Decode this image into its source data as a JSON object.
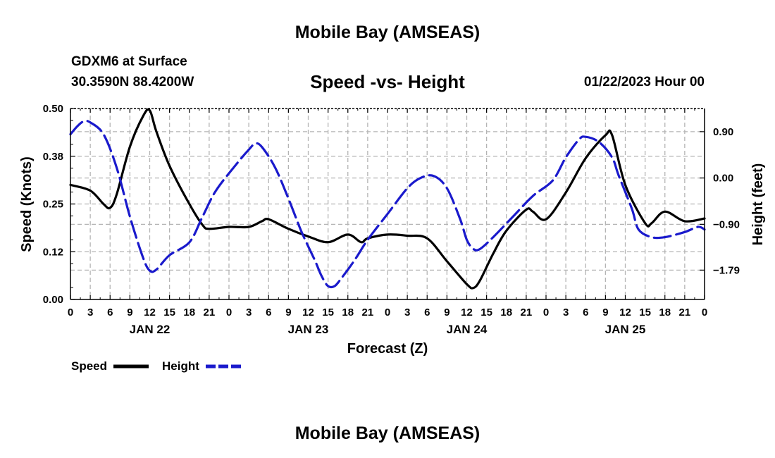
{
  "header": {
    "title": "Mobile Bay (AMSEAS)",
    "station": "GDXM6 at Surface",
    "coords": "30.3590N  88.4200W",
    "chart_title": "Speed -vs- Height",
    "datetime": "01/22/2023 Hour 00"
  },
  "footer": {
    "title": "Mobile Bay (AMSEAS)"
  },
  "colors": {
    "speed": "#000000",
    "height": "#1a1acc",
    "grid": "#b4b4b4"
  },
  "chart_data": {
    "type": "line",
    "title": "Speed -vs- Height",
    "xlabel": "Forecast (Z)",
    "x_hours": [
      0,
      3,
      6,
      9,
      12,
      15,
      18,
      21,
      0,
      3,
      6,
      9,
      12,
      15,
      18,
      21,
      0,
      3,
      6,
      9,
      12,
      15,
      18,
      21,
      0,
      3,
      6,
      9,
      12,
      15,
      18,
      21,
      0
    ],
    "x_tick_labels": [
      "0",
      "3",
      "6",
      "9",
      "12",
      "15",
      "18",
      "21",
      "0",
      "3",
      "6",
      "9",
      "12",
      "15",
      "18",
      "21",
      "0",
      "3",
      "6",
      "9",
      "12",
      "15",
      "18",
      "21",
      "0",
      "3",
      "6",
      "9",
      "12",
      "15",
      "18",
      "21",
      "0"
    ],
    "date_labels": [
      "JAN 22",
      "JAN 23",
      "JAN 24",
      "JAN 25"
    ],
    "x_range_hours": [
      0,
      96
    ],
    "y_left": {
      "label": "Speed (Knots)",
      "range": [
        0,
        0.5
      ],
      "ticks": [
        "0.00",
        "0.12",
        "0.25",
        "0.38",
        "0.50"
      ]
    },
    "y_right": {
      "label": "Height (feet)",
      "range": [
        -2.36,
        1.35
      ],
      "ticks": [
        {
          "value": 0.9,
          "label": "0.90"
        },
        {
          "value": 0.0,
          "label": "0.00"
        },
        {
          "value": -0.9,
          "label": "−0.90"
        },
        {
          "value": -1.79,
          "label": "−1.79"
        }
      ]
    },
    "grid": true,
    "legend": {
      "position": "bottom-left",
      "items": [
        "Speed",
        "Height"
      ]
    },
    "series": [
      {
        "name": "Speed",
        "axis": "left",
        "style": "solid",
        "points": [
          [
            0,
            0.3
          ],
          [
            3,
            0.285
          ],
          [
            5,
            0.25
          ],
          [
            6,
            0.24
          ],
          [
            7,
            0.275
          ],
          [
            9,
            0.4
          ],
          [
            11,
            0.48
          ],
          [
            12,
            0.495
          ],
          [
            13,
            0.44
          ],
          [
            15,
            0.35
          ],
          [
            18,
            0.25
          ],
          [
            20,
            0.195
          ],
          [
            21,
            0.185
          ],
          [
            24,
            0.19
          ],
          [
            27,
            0.19
          ],
          [
            29,
            0.205
          ],
          [
            30,
            0.21
          ],
          [
            33,
            0.185
          ],
          [
            36,
            0.165
          ],
          [
            39,
            0.15
          ],
          [
            42,
            0.17
          ],
          [
            44,
            0.15
          ],
          [
            45,
            0.16
          ],
          [
            48,
            0.17
          ],
          [
            51,
            0.167
          ],
          [
            54,
            0.16
          ],
          [
            57,
            0.1
          ],
          [
            60,
            0.04
          ],
          [
            61,
            0.03
          ],
          [
            62,
            0.05
          ],
          [
            64,
            0.12
          ],
          [
            66,
            0.18
          ],
          [
            69,
            0.235
          ],
          [
            70,
            0.23
          ],
          [
            72,
            0.21
          ],
          [
            75,
            0.28
          ],
          [
            78,
            0.37
          ],
          [
            81,
            0.43
          ],
          [
            82,
            0.43
          ],
          [
            84,
            0.3
          ],
          [
            87,
            0.2
          ],
          [
            88,
            0.2
          ],
          [
            90,
            0.23
          ],
          [
            93,
            0.205
          ],
          [
            96,
            0.212
          ]
        ]
      },
      {
        "name": "Height",
        "axis": "right",
        "style": "dashed",
        "points": [
          [
            0,
            0.85
          ],
          [
            1,
            1.0
          ],
          [
            2,
            1.1
          ],
          [
            3,
            1.08
          ],
          [
            5,
            0.85
          ],
          [
            7,
            0.2
          ],
          [
            9,
            -0.75
          ],
          [
            11,
            -1.55
          ],
          [
            12,
            -1.8
          ],
          [
            13,
            -1.78
          ],
          [
            15,
            -1.5
          ],
          [
            18,
            -1.25
          ],
          [
            20,
            -0.75
          ],
          [
            22,
            -0.25
          ],
          [
            25,
            0.25
          ],
          [
            27,
            0.55
          ],
          [
            28,
            0.67
          ],
          [
            29,
            0.6
          ],
          [
            31,
            0.2
          ],
          [
            33,
            -0.4
          ],
          [
            35,
            -1.05
          ],
          [
            37,
            -1.6
          ],
          [
            38,
            -1.9
          ],
          [
            39,
            -2.1
          ],
          [
            40,
            -2.1
          ],
          [
            41,
            -1.95
          ],
          [
            43,
            -1.6
          ],
          [
            45,
            -1.2
          ],
          [
            48,
            -0.7
          ],
          [
            51,
            -0.2
          ],
          [
            53,
            0.0
          ],
          [
            55,
            0.04
          ],
          [
            57,
            -0.2
          ],
          [
            59,
            -0.8
          ],
          [
            60,
            -1.2
          ],
          [
            61,
            -1.38
          ],
          [
            62,
            -1.38
          ],
          [
            64,
            -1.15
          ],
          [
            67,
            -0.75
          ],
          [
            70,
            -0.35
          ],
          [
            73,
            -0.05
          ],
          [
            75,
            0.4
          ],
          [
            77,
            0.75
          ],
          [
            78,
            0.8
          ],
          [
            80,
            0.7
          ],
          [
            82,
            0.4
          ],
          [
            83,
            0.05
          ],
          [
            85,
            -0.6
          ],
          [
            86,
            -1.0
          ],
          [
            88,
            -1.15
          ],
          [
            90,
            -1.15
          ],
          [
            93,
            -1.05
          ],
          [
            95,
            -0.95
          ],
          [
            96,
            -1.0
          ]
        ]
      }
    ]
  }
}
